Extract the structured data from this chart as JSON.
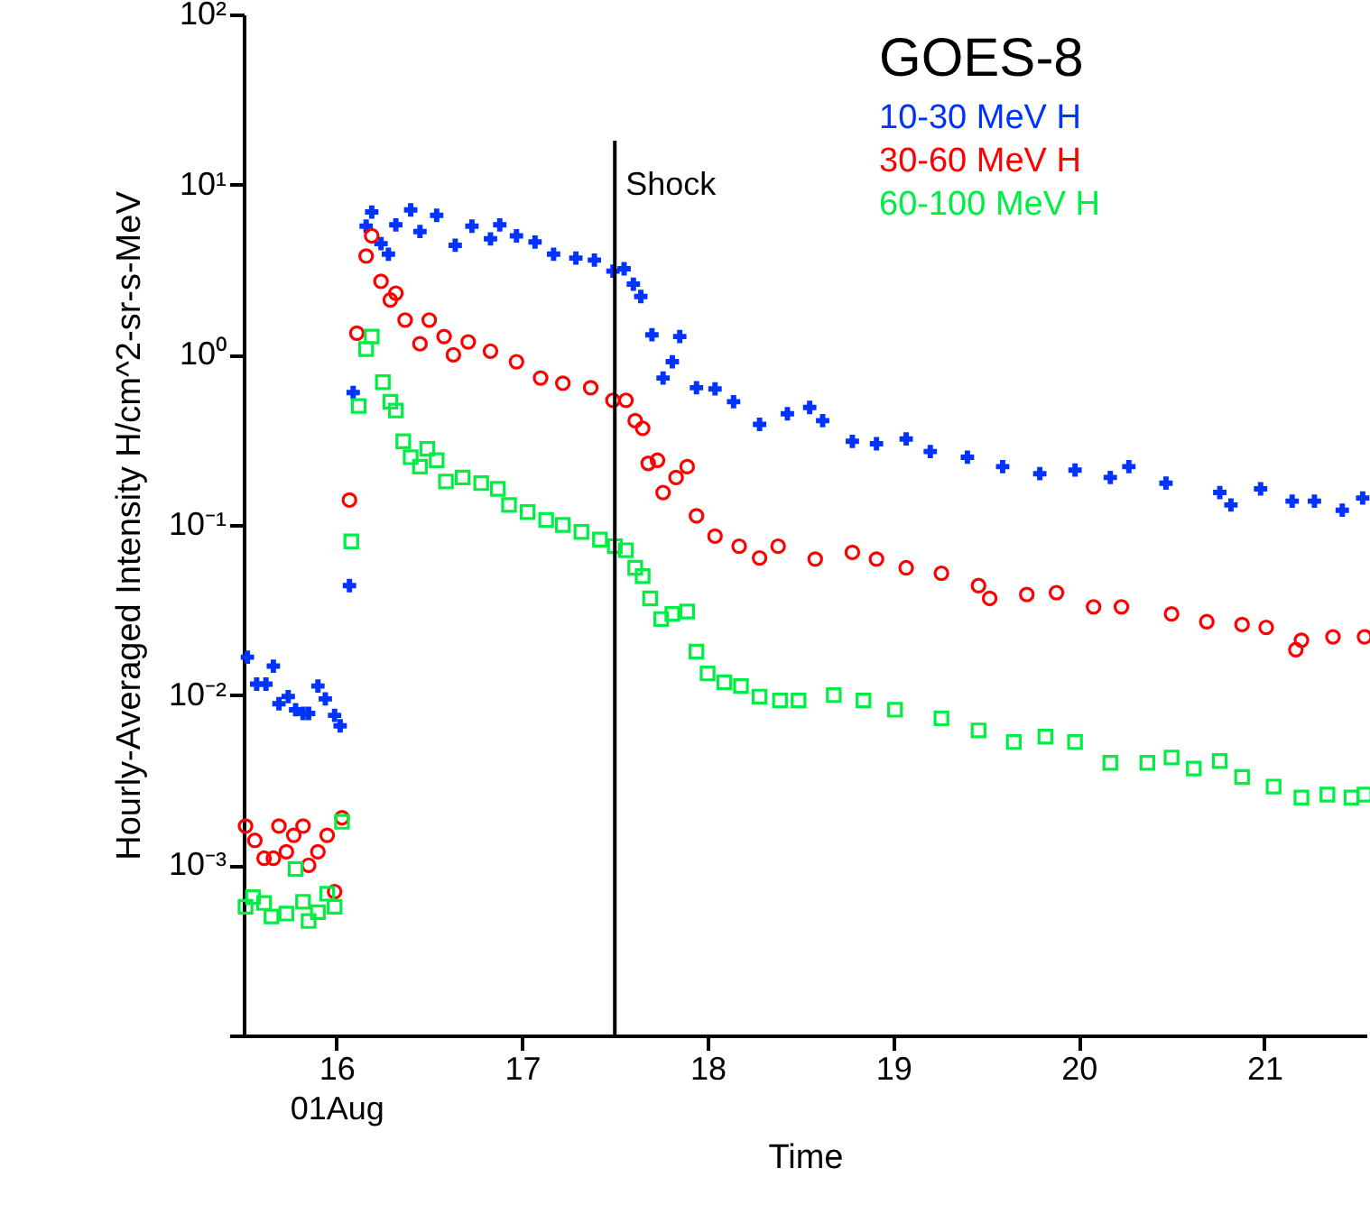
{
  "chart_data": {
    "type": "scatter",
    "xlabel": "Time",
    "ylabel": "Hourly-Averaged Intensity H/cm^2-sr-s-MeV",
    "legend_title": "GOES-8",
    "legend": "top right",
    "grid": false,
    "log": "y",
    "xlim": [
      15.5,
      21.55
    ],
    "xticks": [
      {
        "value": 16,
        "label": "16\n01Aug"
      },
      17,
      18,
      19,
      20,
      21
    ],
    "ylim": [
      0.0001,
      100
    ],
    "yticks": [
      {
        "value": 0.0001,
        "label": null
      },
      {
        "value": 0.001,
        "label": "10⁻³"
      },
      {
        "value": 0.01,
        "label": "10⁻²"
      },
      {
        "value": 0.1,
        "label": "10⁻¹"
      },
      {
        "value": 1,
        "label": "10⁰"
      },
      {
        "value": 10,
        "label": "10¹"
      },
      {
        "value": 100,
        "label": "10²"
      }
    ],
    "ref_lines": [
      {
        "axis": "x",
        "value": 17.5,
        "label": "Shock",
        "color": "#000000"
      }
    ],
    "series": [
      {
        "name": "10-30 MeV H",
        "color": "#0033ff",
        "marker": "cross",
        "x": [
          15.52,
          15.57,
          15.62,
          15.66,
          15.69,
          15.74,
          15.78,
          15.82,
          15.85,
          15.9,
          15.94,
          15.99,
          16.02,
          16.07,
          16.09,
          16.16,
          16.19,
          16.24,
          16.28,
          16.32,
          16.4,
          16.45,
          16.54,
          16.64,
          16.73,
          16.83,
          16.88,
          16.97,
          17.07,
          17.17,
          17.29,
          17.39,
          17.49,
          17.55,
          17.6,
          17.64,
          17.7,
          17.76,
          17.81,
          17.85,
          17.94,
          18.04,
          18.14,
          18.28,
          18.43,
          18.55,
          18.62,
          18.78,
          18.91,
          19.07,
          19.2,
          19.4,
          19.59,
          19.79,
          19.98,
          20.17,
          20.27,
          20.47,
          20.76,
          20.82,
          20.98,
          21.15,
          21.27,
          21.42,
          21.53
        ],
        "values": [
          0.0167,
          0.0116,
          0.0116,
          0.0148,
          0.0089,
          0.0098,
          0.0082,
          0.0078,
          0.0078,
          0.0113,
          0.0095,
          0.0076,
          0.0066,
          0.044,
          0.6,
          5.7,
          6.9,
          4.5,
          3.9,
          5.8,
          7.1,
          5.3,
          6.6,
          4.4,
          5.7,
          4.8,
          5.8,
          5.0,
          4.6,
          3.9,
          3.7,
          3.6,
          3.1,
          3.2,
          2.6,
          2.2,
          1.31,
          0.73,
          0.91,
          1.28,
          0.64,
          0.63,
          0.53,
          0.39,
          0.45,
          0.49,
          0.41,
          0.31,
          0.3,
          0.32,
          0.27,
          0.25,
          0.22,
          0.2,
          0.21,
          0.19,
          0.22,
          0.176,
          0.155,
          0.131,
          0.163,
          0.138,
          0.138,
          0.122,
          0.144
        ]
      },
      {
        "name": "30-60 MeV H",
        "color": "#ff0000",
        "marker": "circle",
        "x": [
          15.51,
          15.56,
          15.61,
          15.66,
          15.69,
          15.73,
          15.77,
          15.82,
          15.85,
          15.9,
          15.95,
          15.99,
          16.03,
          16.07,
          16.11,
          16.16,
          16.19,
          16.24,
          16.29,
          16.32,
          16.37,
          16.45,
          16.5,
          16.58,
          16.63,
          16.71,
          16.83,
          16.97,
          17.1,
          17.22,
          17.37,
          17.49,
          17.56,
          17.61,
          17.65,
          17.68,
          17.73,
          17.76,
          17.83,
          17.89,
          17.94,
          18.04,
          18.17,
          18.28,
          18.38,
          18.58,
          18.78,
          18.91,
          19.07,
          19.26,
          19.46,
          19.52,
          19.72,
          19.88,
          20.08,
          20.23,
          20.5,
          20.69,
          20.88,
          21.01,
          21.17,
          21.2,
          21.37,
          21.54
        ],
        "values": [
          0.0017,
          0.0014,
          0.0011,
          0.0011,
          0.0017,
          0.0012,
          0.0015,
          0.0017,
          0.001,
          0.0012,
          0.0015,
          0.0007,
          0.0019,
          0.14,
          1.34,
          3.8,
          5.0,
          2.7,
          2.1,
          2.3,
          1.6,
          1.16,
          1.6,
          1.28,
          1.0,
          1.19,
          1.05,
          0.91,
          0.73,
          0.68,
          0.64,
          0.54,
          0.54,
          0.41,
          0.37,
          0.23,
          0.24,
          0.155,
          0.19,
          0.22,
          0.113,
          0.086,
          0.075,
          0.064,
          0.075,
          0.063,
          0.069,
          0.063,
          0.056,
          0.052,
          0.044,
          0.037,
          0.039,
          0.04,
          0.033,
          0.033,
          0.03,
          0.027,
          0.026,
          0.025,
          0.0185,
          0.021,
          0.022,
          0.022
        ]
      },
      {
        "name": "60-100 MeV H",
        "color": "#00ee44",
        "marker": "square",
        "x": [
          15.51,
          15.55,
          15.61,
          15.65,
          15.73,
          15.78,
          15.82,
          15.85,
          15.9,
          15.95,
          15.99,
          16.03,
          16.08,
          16.12,
          16.16,
          16.19,
          16.25,
          16.29,
          16.32,
          16.36,
          16.4,
          16.45,
          16.49,
          16.54,
          16.59,
          16.68,
          16.78,
          16.87,
          16.93,
          17.03,
          17.13,
          17.22,
          17.32,
          17.42,
          17.5,
          17.56,
          17.61,
          17.65,
          17.69,
          17.75,
          17.81,
          17.89,
          17.94,
          18.0,
          18.09,
          18.18,
          18.28,
          18.39,
          18.49,
          18.68,
          18.84,
          19.01,
          19.26,
          19.46,
          19.65,
          19.82,
          19.98,
          20.17,
          20.37,
          20.5,
          20.62,
          20.76,
          20.88,
          21.05,
          21.2,
          21.34,
          21.47,
          21.54
        ],
        "values": [
          0.00057,
          0.00065,
          0.0006,
          0.0005,
          0.00052,
          0.00095,
          0.00061,
          0.00047,
          0.00053,
          0.00068,
          0.00057,
          0.0018,
          0.08,
          0.5,
          1.08,
          1.28,
          0.69,
          0.53,
          0.47,
          0.31,
          0.25,
          0.22,
          0.28,
          0.24,
          0.18,
          0.19,
          0.176,
          0.163,
          0.131,
          0.119,
          0.107,
          0.1,
          0.091,
          0.082,
          0.075,
          0.071,
          0.056,
          0.05,
          0.037,
          0.028,
          0.03,
          0.031,
          0.018,
          0.0134,
          0.0119,
          0.0113,
          0.0098,
          0.0093,
          0.0093,
          0.01,
          0.0093,
          0.0082,
          0.0073,
          0.0062,
          0.0053,
          0.0057,
          0.0053,
          0.004,
          0.004,
          0.0043,
          0.0037,
          0.0041,
          0.0033,
          0.0029,
          0.0025,
          0.0026,
          0.0025,
          0.0026
        ]
      }
    ]
  }
}
